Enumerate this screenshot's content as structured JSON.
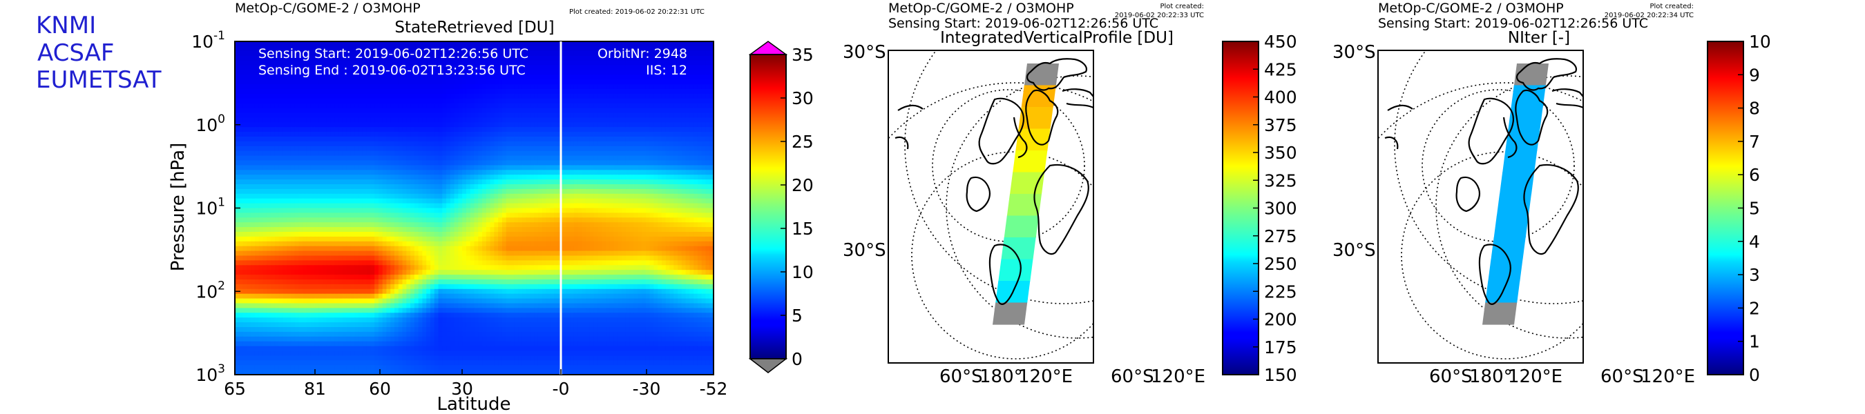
{
  "brand": {
    "lines": [
      "KNMI",
      "ACSAF",
      "EUMETSAT"
    ]
  },
  "panel1": {
    "header": "MetOp-C/GOME-2 / O3MOHP",
    "plot_created": "Plot created: 2019-06-02 20:22:31 UTC",
    "title": "StateRetrieved [DU]",
    "sensing_start": "Sensing Start: 2019-06-02T12:26:56 UTC",
    "sensing_end": "Sensing End  : 2019-06-02T13:23:56 UTC",
    "orbit": "OrbitNr: 2948",
    "iis": "IIS: 12"
  },
  "panel2": {
    "header": "MetOp-C/GOME-2 / O3MOHP",
    "sensing_start": "Sensing Start: 2019-06-02T12:26:56 UTC",
    "plot_created_1": "Plot created:",
    "plot_created_2": "2019-06-02 20:22:33 UTC",
    "title": "IntegratedVerticalProfile [DU]",
    "lat_top": "30°S",
    "lat_mid": "30°S",
    "bottom_labels": [
      "60°S",
      "180°",
      "120°E",
      "60°S",
      "120°E"
    ]
  },
  "panel3": {
    "header": "MetOp-C/GOME-2 / O3MOHP",
    "sensing_start": "Sensing Start: 2019-06-02T12:26:56 UTC",
    "plot_created_1": "Plot created:",
    "plot_created_2": "2019-06-02 20:22:34 UTC",
    "title": "NIter [-]",
    "lat_top": "30°S",
    "lat_mid": "30°S",
    "bottom_labels": [
      "60°S",
      "180°",
      "120°E",
      "60°S",
      "120°E"
    ]
  },
  "chart_data": [
    {
      "type": "heatmap",
      "title": "StateRetrieved [DU]",
      "xlabel": "Latitude",
      "ylabel": "Pressure [hPa]",
      "x_tick_labels": [
        "65",
        "81",
        "60",
        "30",
        "-0",
        "-30",
        "-52"
      ],
      "y_scale": "log",
      "y_tick_labels": [
        "10",
        "10",
        "10",
        "10",
        "10"
      ],
      "y_tick_exponents": [
        "-1",
        "0",
        "1",
        "2",
        "3"
      ],
      "ylim_hpa": [
        0.1,
        1000
      ],
      "colorbar": {
        "ticks": [
          "0",
          "5",
          "10",
          "15",
          "20",
          "25",
          "30",
          "35"
        ],
        "range": [
          0,
          35
        ],
        "over_color": "#ff00ff",
        "under_color": "#808080"
      },
      "profile_rows": [
        {
          "p": 0.1,
          "values": [
            3,
            3,
            3,
            3,
            3,
            3,
            3,
            3
          ]
        },
        {
          "p": 1,
          "values": [
            5,
            5,
            5,
            5,
            6,
            6,
            6,
            6
          ]
        },
        {
          "p": 3,
          "values": [
            8,
            8,
            8,
            7,
            9,
            9,
            9,
            8
          ]
        },
        {
          "p": 7,
          "values": [
            12,
            12,
            12,
            10,
            18,
            20,
            19,
            16
          ]
        },
        {
          "p": 15,
          "values": [
            17,
            18,
            18,
            15,
            24,
            25,
            24,
            22
          ]
        },
        {
          "p": 30,
          "values": [
            24,
            26,
            26,
            20,
            26,
            26,
            25,
            27
          ]
        },
        {
          "p": 55,
          "values": [
            30,
            31,
            32,
            21,
            22,
            21,
            20,
            26
          ]
        },
        {
          "p": 100,
          "values": [
            27,
            28,
            28,
            10,
            12,
            11,
            10,
            14
          ]
        },
        {
          "p": 200,
          "values": [
            12,
            13,
            12,
            6,
            7,
            7,
            7,
            8
          ]
        },
        {
          "p": 500,
          "values": [
            7,
            7,
            7,
            6,
            6,
            6,
            6,
            6
          ]
        },
        {
          "p": 1000,
          "values": [
            8,
            8,
            8,
            7,
            7,
            7,
            7,
            7
          ]
        }
      ]
    },
    {
      "type": "heatmap",
      "title": "IntegratedVerticalProfile [DU]",
      "colorbar": {
        "ticks": [
          "150",
          "175",
          "200",
          "225",
          "250",
          "275",
          "300",
          "325",
          "350",
          "375",
          "400",
          "425",
          "450"
        ],
        "range": [
          150,
          450
        ]
      },
      "swath_values_north_to_south": [
        null,
        360,
        355,
        345,
        335,
        320,
        310,
        295,
        280,
        270,
        255,
        null
      ]
    },
    {
      "type": "heatmap",
      "title": "NIter [-]",
      "colorbar": {
        "ticks": [
          "0",
          "1",
          "2",
          "3",
          "4",
          "5",
          "6",
          "7",
          "8",
          "9",
          "10"
        ],
        "range": [
          0,
          10
        ]
      },
      "swath_values_north_to_south": [
        null,
        3,
        3,
        3,
        3,
        3,
        3,
        3,
        3,
        3,
        3,
        null
      ]
    }
  ]
}
